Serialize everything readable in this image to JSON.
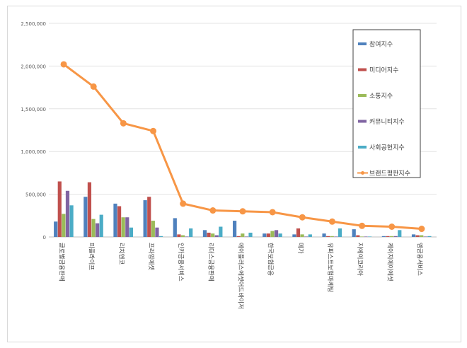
{
  "chart_data": {
    "type": "bar",
    "categories": [
      "글로벌금융판매",
      "피플라이프",
      "리치앤코",
      "프라임에셋",
      "인카금융서비스",
      "리더스금융판매",
      "에이플러스에셋어드바이저",
      "한국보험금융",
      "메가",
      "유퍼스트보험마케팅",
      "지에이코리아",
      "케이지에이에셋",
      "엠금융서비스"
    ],
    "ylim": [
      0,
      2500000
    ],
    "yticks": [
      0,
      500000,
      1000000,
      1500000,
      2000000,
      2500000
    ],
    "ytick_labels": [
      "0",
      "500,000",
      "1,000,000",
      "1,500,000",
      "2,000,000",
      "2,500,000"
    ],
    "grid": true,
    "legend_position": "right",
    "series": [
      {
        "name": "참여지수",
        "color": "#4f81bd",
        "kind": "bar",
        "values": [
          180000,
          470000,
          390000,
          430000,
          220000,
          80000,
          190000,
          40000,
          30000,
          40000,
          90000,
          10000,
          30000
        ]
      },
      {
        "name": "미디어지수",
        "color": "#c0504d",
        "kind": "bar",
        "values": [
          650000,
          640000,
          360000,
          470000,
          30000,
          50000,
          10000,
          40000,
          100000,
          10000,
          20000,
          10000,
          20000
        ]
      },
      {
        "name": "소통지수",
        "color": "#9bbb59",
        "kind": "bar",
        "values": [
          270000,
          210000,
          230000,
          190000,
          20000,
          40000,
          40000,
          70000,
          30000,
          10000,
          5000,
          10000,
          20000
        ]
      },
      {
        "name": "커뮤니티지수",
        "color": "#8064a2",
        "kind": "bar",
        "values": [
          540000,
          160000,
          230000,
          110000,
          5000,
          20000,
          5000,
          80000,
          5000,
          5000,
          5000,
          10000,
          5000
        ]
      },
      {
        "name": "사회공헌지수",
        "color": "#4bacc6",
        "kind": "bar",
        "values": [
          370000,
          260000,
          110000,
          10000,
          100000,
          120000,
          50000,
          40000,
          30000,
          100000,
          5000,
          80000,
          10000
        ]
      },
      {
        "name": "브랜드평판지수",
        "color": "#f79646",
        "kind": "line",
        "values": [
          2020000,
          1760000,
          1330000,
          1240000,
          390000,
          310000,
          300000,
          290000,
          230000,
          180000,
          130000,
          120000,
          95000
        ]
      }
    ]
  }
}
